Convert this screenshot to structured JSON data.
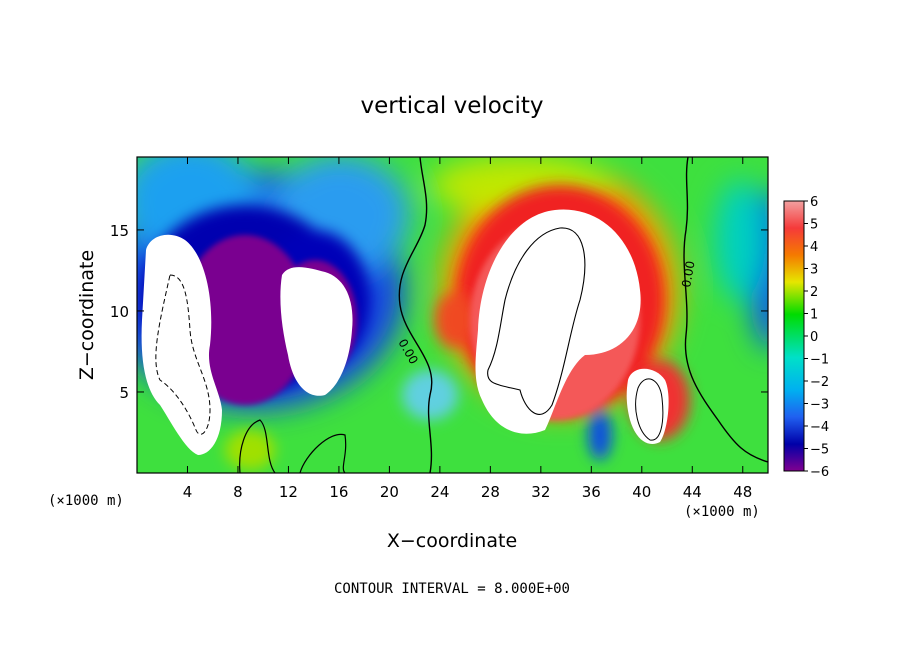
{
  "chart_data": {
    "type": "heatmap",
    "title": "vertical velocity",
    "xlabel": "X−coordinate",
    "ylabel": "Z−coordinate",
    "x_unit_left": "(×1000 m)",
    "x_unit_right": "(×1000 m)",
    "footer": "CONTOUR INTERVAL = 8.000E+00",
    "xlim": [
      0,
      50
    ],
    "ylim": [
      0,
      19.5
    ],
    "x_ticks": [
      4,
      8,
      12,
      16,
      20,
      24,
      28,
      32,
      36,
      40,
      44,
      48
    ],
    "x_tick_labels": [
      "4",
      "8",
      "12",
      "16",
      "20",
      "24",
      "28",
      "32",
      "36",
      "40",
      "44",
      "48"
    ],
    "y_ticks": [
      5,
      10,
      15
    ],
    "y_tick_labels": [
      "5",
      "10",
      "15"
    ],
    "colorbar": {
      "min": -6,
      "max": 6,
      "ticks": [
        6,
        5,
        4,
        3,
        2,
        1,
        0,
        -1,
        -2,
        -3,
        -4,
        -5,
        -6
      ],
      "tick_labels": [
        "6",
        "5",
        "4",
        "3",
        "2",
        "1",
        "0",
        "−1",
        "−2",
        "−3",
        "−4",
        "−5",
        "−6"
      ],
      "colors_top_to_bottom": [
        "#f2a0a0",
        "#f54545",
        "#f21010",
        "#f57a00",
        "#f5b400",
        "#e6e600",
        "#9ee600",
        "#00dc00",
        "#00e07a",
        "#00e0c8",
        "#00c0f0",
        "#2470f5",
        "#1818d0",
        "#0000a8",
        "#800090"
      ]
    },
    "contour_labels": [
      "0.00",
      "0.00"
    ]
  }
}
